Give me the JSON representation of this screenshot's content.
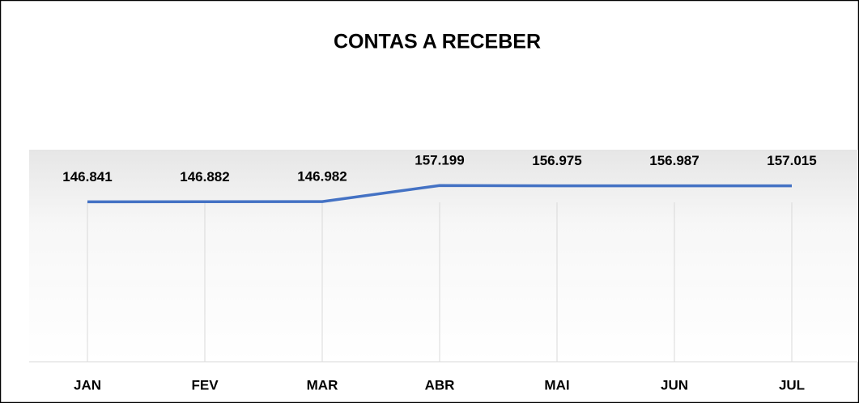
{
  "chart_data": {
    "type": "line",
    "title": "CONTAS A RECEBER",
    "categories": [
      "JAN",
      "FEV",
      "MAR",
      "ABR",
      "MAI",
      "JUN",
      "JUL"
    ],
    "series": [
      {
        "name": "CONTAS A RECEBER",
        "color": "#4472c4",
        "values": [
          146.841,
          146.882,
          146.982,
          157.199,
          156.975,
          156.987,
          157.015
        ]
      }
    ],
    "ylim": [
      45,
      180
    ],
    "grid": true
  }
}
